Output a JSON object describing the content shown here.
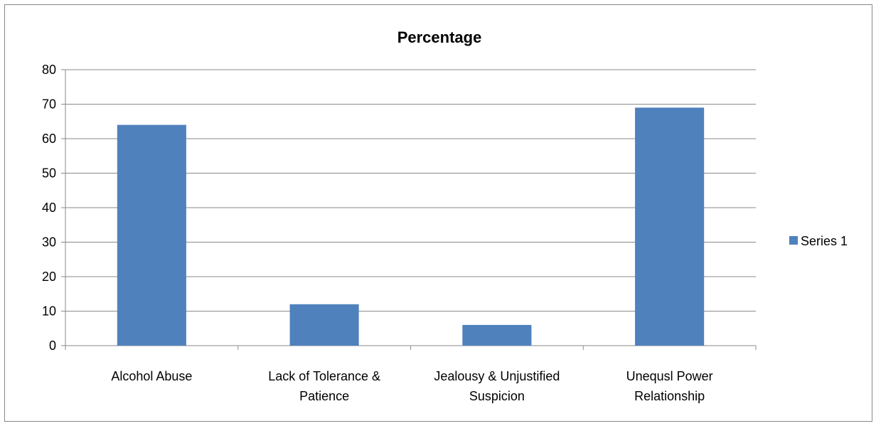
{
  "chart_data": {
    "type": "bar",
    "title": "Percentage",
    "xlabel": "",
    "ylabel": "",
    "categories": [
      [
        "Alcohol Abuse"
      ],
      [
        "Lack of Tolerance &",
        "Patience"
      ],
      [
        "Jealousy & Unjustified",
        "Suspicion"
      ],
      [
        "Unequsl Power",
        "Relationship"
      ]
    ],
    "series": [
      {
        "name": "Series 1",
        "values": [
          64,
          12,
          6,
          69
        ],
        "color": "#4f81bd"
      }
    ],
    "ylim": [
      0,
      80
    ],
    "yticks": [
      0,
      10,
      20,
      30,
      40,
      50,
      60,
      70,
      80
    ],
    "grid": true,
    "legend": "right"
  }
}
